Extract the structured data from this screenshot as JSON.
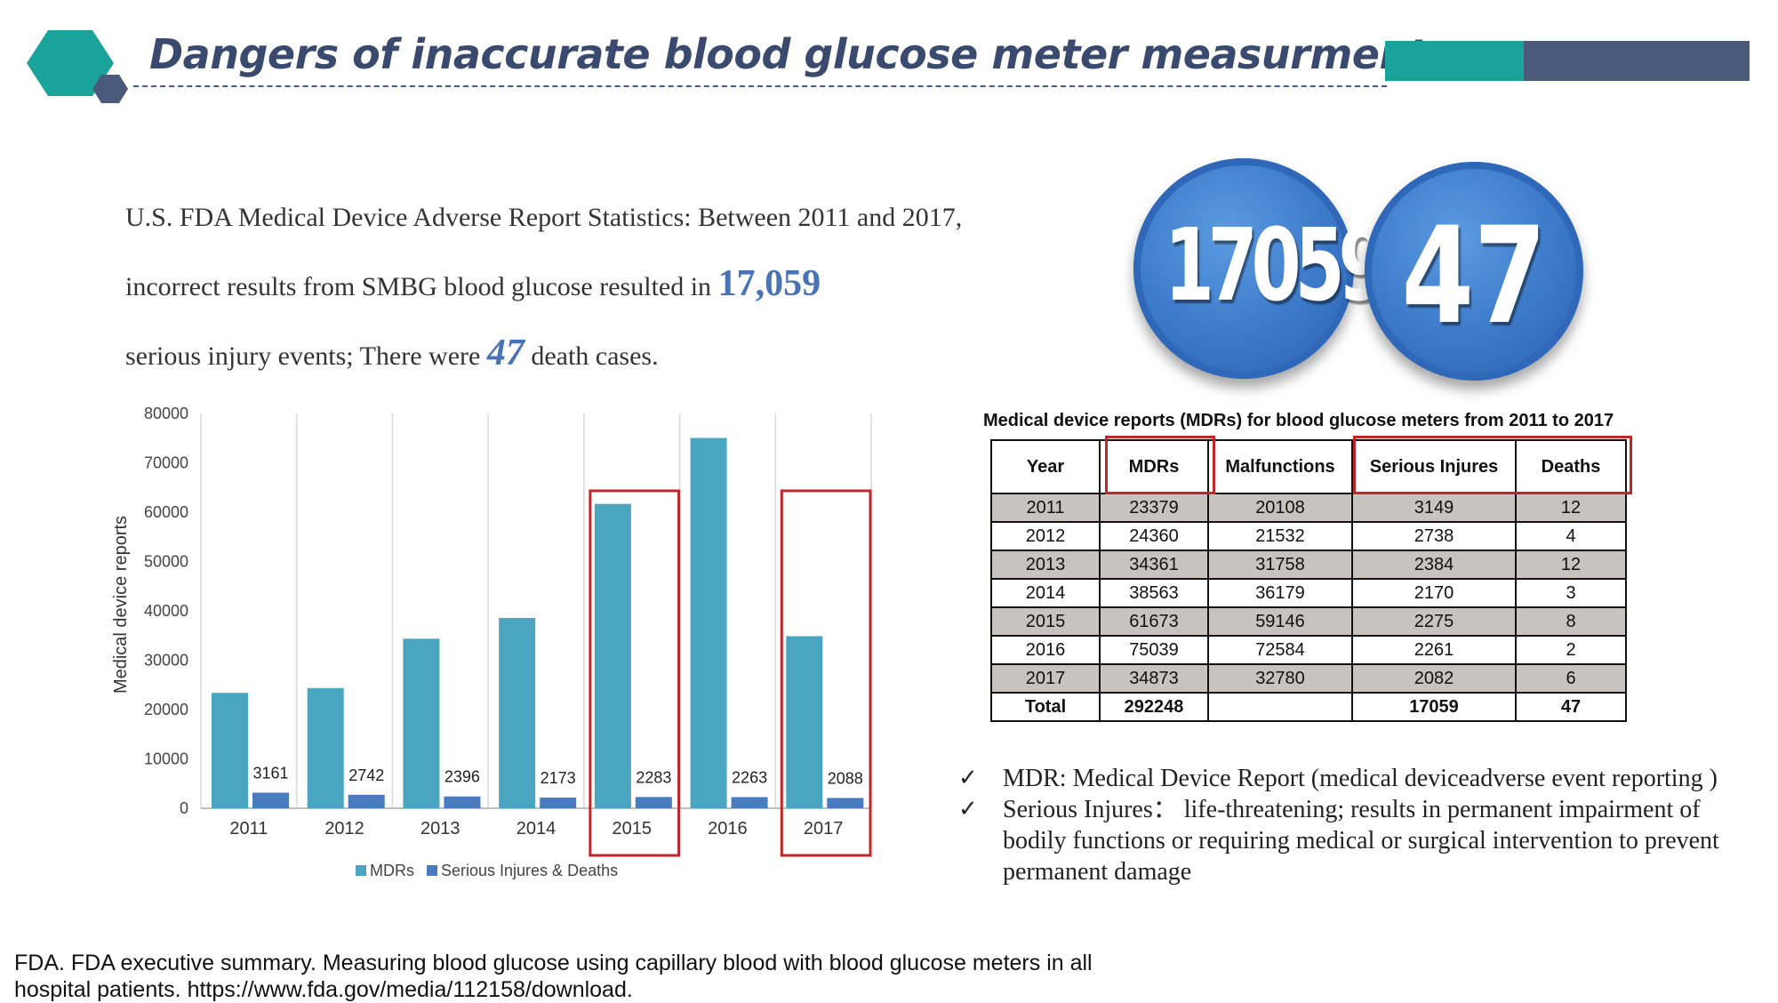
{
  "header": {
    "title": "Dangers of inaccurate blood glucose meter measurments"
  },
  "colors": {
    "teal": "#1aa39a",
    "slate": "#4a5a7a",
    "mdr_bar": "#4aa5c0",
    "injury_bar": "#4a7bbf",
    "highlight_box": "#c0272d",
    "badge_blue": "#3a78c8"
  },
  "intro": {
    "part1": "U.S. FDA Medical Device Adverse Report Statistics: Between 2011 and 2017, incorrect results from SMBG blood glucose resulted in",
    "highlight_injuries": "17,059",
    "part2": "serious injury events; There were",
    "highlight_deaths": "47",
    "part3": "death cases."
  },
  "badges": {
    "injuries": "17059",
    "deaths": "47"
  },
  "chart_data": {
    "type": "bar",
    "categories": [
      "2011",
      "2012",
      "2013",
      "2014",
      "2015",
      "2016",
      "2017"
    ],
    "series": [
      {
        "name": "MDRs",
        "values": [
          23379,
          24360,
          34361,
          38563,
          61673,
          75039,
          34873
        ],
        "color": "#4aa5c0"
      },
      {
        "name": "Serious Injures & Deaths",
        "values": [
          3161,
          2742,
          2396,
          2173,
          2283,
          2263,
          2088
        ],
        "color": "#4a7bbf"
      }
    ],
    "data_labels": [
      "3161",
      "2742",
      "2396",
      "2173",
      "2283",
      "2263",
      "2088"
    ],
    "ylabel": "Medical device reports",
    "ylim": [
      0,
      80000
    ],
    "yticks": [
      "0",
      "10000",
      "20000",
      "30000",
      "40000",
      "50000",
      "60000",
      "70000",
      "80000"
    ],
    "highlighted_categories": [
      "2015",
      "2017"
    ],
    "grid": "vertical",
    "legend": "bottom"
  },
  "table": {
    "title": "Medical device reports (MDRs) for blood glucose meters from 2011 to 2017",
    "headers": [
      "Year",
      "MDRs",
      "Malfunctions",
      "Serious Injures",
      "Deaths"
    ],
    "rows": [
      [
        "2011",
        "23379",
        "20108",
        "3149",
        "12"
      ],
      [
        "2012",
        "24360",
        "21532",
        "2738",
        "4"
      ],
      [
        "2013",
        "34361",
        "31758",
        "2384",
        "12"
      ],
      [
        "2014",
        "38563",
        "36179",
        "2170",
        "3"
      ],
      [
        "2015",
        "61673",
        "59146",
        "2275",
        "8"
      ],
      [
        "2016",
        "75039",
        "72584",
        "2261",
        "2"
      ],
      [
        "2017",
        "34873",
        "32780",
        "2082",
        "6"
      ]
    ],
    "total": [
      "Total",
      "292248",
      "",
      "17059",
      "47"
    ],
    "highlighted_columns": [
      "MDRs",
      "Serious Injures",
      "Deaths"
    ]
  },
  "notes": [
    {
      "check": "✓",
      "text": "MDR: Medical Device Report (medical deviceadverse event reporting )"
    },
    {
      "check": "✓",
      "text": "Serious Injures： life-threatening; results in permanent impairment of bodily functions or  requiring medical or surgical intervention to prevent permanent damage"
    }
  ],
  "citation": "FDA. FDA executive summary. Measuring blood glucose using capillary blood with blood glucose meters in all hospital patients.  https://www.fda.gov/media/112158/download."
}
